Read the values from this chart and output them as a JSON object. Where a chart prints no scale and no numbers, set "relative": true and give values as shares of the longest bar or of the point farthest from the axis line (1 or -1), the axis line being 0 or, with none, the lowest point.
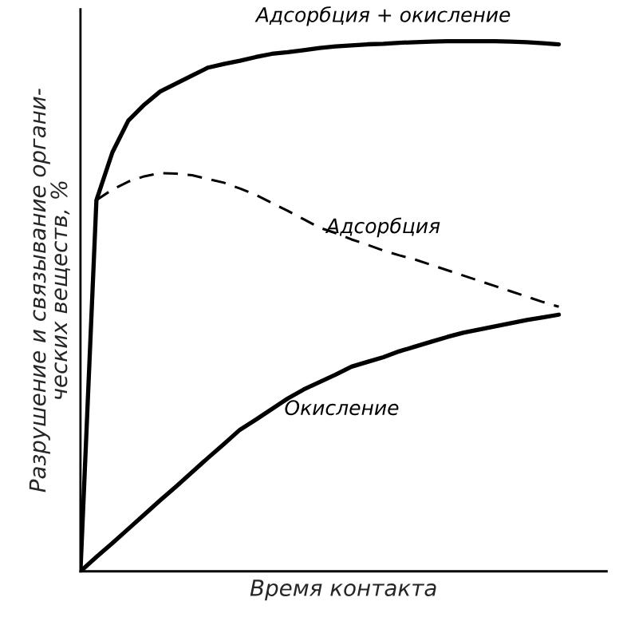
{
  "chart_data": {
    "type": "line",
    "relative": true,
    "xlabel": "Время контакта",
    "ylabel": "Разрушение и связывание органи-\nческих веществ, %",
    "legend": false,
    "marker": "none",
    "categories": [
      null,
      null,
      null,
      null,
      null,
      null,
      null,
      null,
      null,
      null,
      null,
      null,
      null,
      null,
      null,
      null,
      null,
      null,
      null,
      null,
      null,
      null,
      null,
      null,
      null,
      null,
      null,
      null,
      null,
      null,
      null
    ],
    "series": [
      {
        "name": "Адсорбция + окисление",
        "color": "#000000",
        "line_style": "solid",
        "values": [
          0,
          0.7,
          0.79,
          0.85,
          0.88,
          0.905,
          0.92,
          0.935,
          0.95,
          0.957,
          0.963,
          0.97,
          0.976,
          0.979,
          0.983,
          0.987,
          0.99,
          0.992,
          0.994,
          0.995,
          0.997,
          0.998,
          0.999,
          1.0,
          1.0,
          1.0,
          1.0,
          0.999,
          0.998,
          0.996,
          0.994
        ]
      },
      {
        "name": "Адсорбция",
        "color": "#000000",
        "line_style": "dashed",
        "values": [
          null,
          0.7,
          0.72,
          0.735,
          0.745,
          0.751,
          0.75,
          0.747,
          0.74,
          0.733,
          0.722,
          0.71,
          0.695,
          0.68,
          0.664,
          0.648,
          0.638,
          0.626,
          0.616,
          0.605,
          0.596,
          0.588,
          0.578,
          0.568,
          0.558,
          0.548,
          0.538,
          0.528,
          0.518,
          0.508,
          0.499
        ]
      },
      {
        "name": "Окисление",
        "color": "#000000",
        "line_style": "solid",
        "values": [
          0,
          0.027,
          0.053,
          0.08,
          0.107,
          0.134,
          0.16,
          0.187,
          0.214,
          0.24,
          0.267,
          0.286,
          0.306,
          0.326,
          0.343,
          0.357,
          0.371,
          0.386,
          0.395,
          0.404,
          0.415,
          0.424,
          0.433,
          0.442,
          0.45,
          0.456,
          0.462,
          0.468,
          0.474,
          0.479,
          0.484
        ]
      }
    ]
  }
}
